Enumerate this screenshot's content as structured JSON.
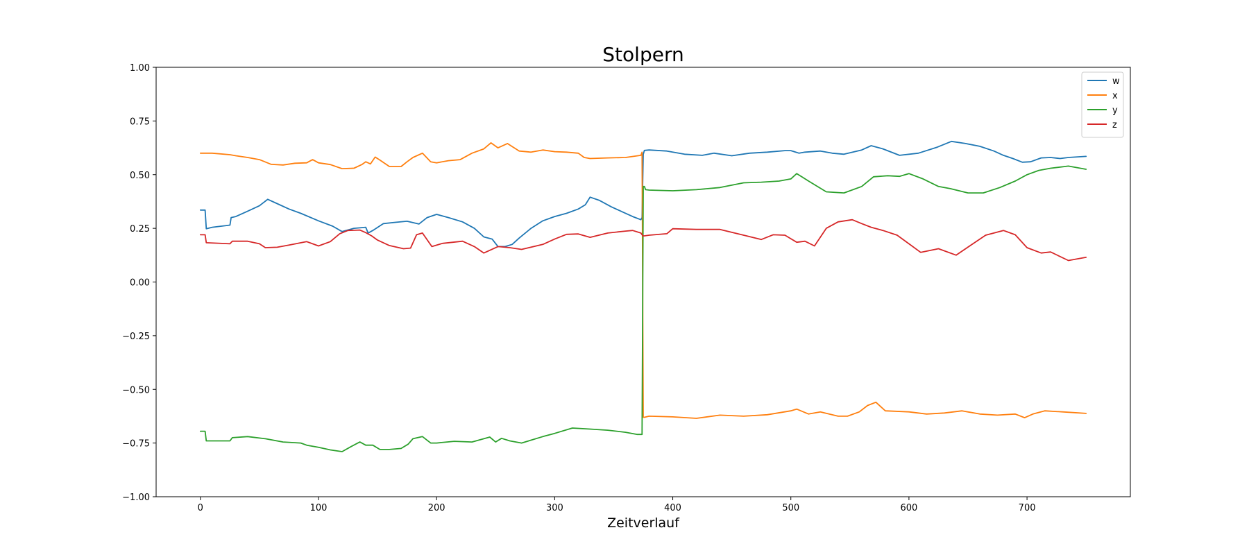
{
  "chart_data": {
    "type": "line",
    "title": "Stolpern",
    "xlabel": "Zeitverlauf",
    "ylabel": "",
    "xlim": [
      -37.5,
      787.5
    ],
    "ylim": [
      -1.0,
      1.0
    ],
    "x_ticks": [
      0,
      100,
      200,
      300,
      400,
      500,
      600,
      700
    ],
    "y_ticks": [
      -1.0,
      -0.75,
      -0.5,
      -0.25,
      0.0,
      0.25,
      0.5,
      0.75,
      1.0
    ],
    "y_tick_labels": [
      "−1.00",
      "−0.75",
      "−0.50",
      "−0.25",
      "0.00",
      "0.25",
      "0.50",
      "0.75",
      "1.00"
    ],
    "grid": false,
    "legend": "top-right",
    "series": [
      {
        "name": "w",
        "color": "#1f77b4",
        "x": [
          0,
          4,
          5,
          10,
          25,
          26,
          30,
          40,
          50,
          57,
          65,
          75,
          85,
          100,
          112,
          120,
          130,
          140,
          142,
          146,
          155,
          165,
          175,
          185,
          192,
          200,
          210,
          222,
          232,
          240,
          247,
          252,
          258,
          264,
          270,
          280,
          290,
          300,
          310,
          320,
          326,
          330,
          338,
          348,
          358,
          366,
          373,
          374,
          375,
          376,
          380,
          395,
          410,
          425,
          435,
          450,
          465,
          480,
          495,
          500,
          507,
          512,
          525,
          535,
          545,
          560,
          568,
          578,
          592,
          608,
          624,
          636,
          648,
          660,
          672,
          680,
          688,
          696,
          703,
          712,
          720,
          728,
          735,
          750
        ],
        "y": [
          0.335,
          0.335,
          0.248,
          0.255,
          0.265,
          0.3,
          0.305,
          0.33,
          0.355,
          0.385,
          0.365,
          0.34,
          0.32,
          0.285,
          0.26,
          0.235,
          0.25,
          0.255,
          0.228,
          0.24,
          0.272,
          0.278,
          0.283,
          0.27,
          0.3,
          0.315,
          0.3,
          0.28,
          0.25,
          0.21,
          0.2,
          0.165,
          0.165,
          0.175,
          0.205,
          0.25,
          0.285,
          0.305,
          0.32,
          0.34,
          0.36,
          0.395,
          0.38,
          0.35,
          0.325,
          0.305,
          0.29,
          0.3,
          0.595,
          0.613,
          0.615,
          0.61,
          0.595,
          0.59,
          0.6,
          0.588,
          0.6,
          0.605,
          0.612,
          0.612,
          0.6,
          0.605,
          0.61,
          0.6,
          0.595,
          0.615,
          0.635,
          0.62,
          0.59,
          0.6,
          0.628,
          0.655,
          0.645,
          0.632,
          0.61,
          0.59,
          0.575,
          0.558,
          0.56,
          0.578,
          0.58,
          0.575,
          0.58,
          0.585
        ]
      },
      {
        "name": "x",
        "color": "#ff7f0e",
        "x": [
          0,
          10,
          25,
          30,
          40,
          50,
          60,
          70,
          80,
          90,
          95,
          100,
          110,
          120,
          130,
          137,
          140,
          144,
          148,
          152,
          160,
          170,
          175,
          180,
          188,
          195,
          200,
          210,
          220,
          230,
          240,
          246,
          252,
          260,
          270,
          280,
          290,
          300,
          310,
          320,
          325,
          330,
          345,
          360,
          373,
          374,
          375,
          376,
          380,
          400,
          420,
          440,
          460,
          480,
          500,
          505,
          515,
          525,
          540,
          548,
          558,
          565,
          572,
          580,
          600,
          615,
          630,
          645,
          660,
          675,
          690,
          698,
          705,
          715,
          730,
          750
        ],
        "y": [
          0.6,
          0.6,
          0.593,
          0.588,
          0.58,
          0.57,
          0.548,
          0.545,
          0.553,
          0.555,
          0.57,
          0.555,
          0.547,
          0.528,
          0.53,
          0.548,
          0.56,
          0.55,
          0.582,
          0.568,
          0.538,
          0.538,
          0.56,
          0.58,
          0.6,
          0.56,
          0.555,
          0.565,
          0.57,
          0.6,
          0.62,
          0.648,
          0.625,
          0.645,
          0.61,
          0.605,
          0.615,
          0.607,
          0.605,
          0.6,
          0.58,
          0.575,
          0.578,
          0.58,
          0.59,
          0.605,
          -0.63,
          -0.63,
          -0.625,
          -0.628,
          -0.635,
          -0.62,
          -0.625,
          -0.618,
          -0.6,
          -0.592,
          -0.615,
          -0.605,
          -0.625,
          -0.625,
          -0.605,
          -0.575,
          -0.56,
          -0.6,
          -0.605,
          -0.615,
          -0.61,
          -0.6,
          -0.615,
          -0.62,
          -0.615,
          -0.632,
          -0.615,
          -0.6,
          -0.605,
          -0.612
        ]
      },
      {
        "name": "y",
        "color": "#2ca02c",
        "x": [
          0,
          4,
          5,
          25,
          27,
          40,
          55,
          70,
          85,
          90,
          100,
          110,
          120,
          128,
          135,
          140,
          146,
          152,
          160,
          170,
          176,
          180,
          188,
          195,
          200,
          215,
          230,
          240,
          245,
          250,
          255,
          262,
          272,
          290,
          300,
          315,
          330,
          345,
          360,
          370,
          374,
          375,
          376,
          377,
          380,
          400,
          420,
          440,
          460,
          475,
          490,
          500,
          505,
          515,
          530,
          545,
          560,
          570,
          582,
          592,
          600,
          612,
          625,
          635,
          650,
          663,
          677,
          690,
          700,
          710,
          720,
          735,
          750
        ],
        "y": [
          -0.695,
          -0.695,
          -0.74,
          -0.74,
          -0.725,
          -0.72,
          -0.73,
          -0.745,
          -0.75,
          -0.76,
          -0.77,
          -0.782,
          -0.79,
          -0.765,
          -0.745,
          -0.76,
          -0.76,
          -0.78,
          -0.78,
          -0.775,
          -0.755,
          -0.73,
          -0.72,
          -0.75,
          -0.75,
          -0.742,
          -0.745,
          -0.73,
          -0.722,
          -0.745,
          -0.728,
          -0.74,
          -0.75,
          -0.72,
          -0.705,
          -0.68,
          -0.685,
          -0.69,
          -0.7,
          -0.71,
          -0.71,
          0.445,
          0.445,
          0.43,
          0.428,
          0.425,
          0.43,
          0.44,
          0.462,
          0.465,
          0.47,
          0.48,
          0.505,
          0.47,
          0.42,
          0.415,
          0.445,
          0.49,
          0.495,
          0.492,
          0.505,
          0.48,
          0.445,
          0.435,
          0.415,
          0.415,
          0.44,
          0.47,
          0.5,
          0.52,
          0.53,
          0.54,
          0.525
        ]
      },
      {
        "name": "z",
        "color": "#d62728",
        "x": [
          0,
          4,
          5,
          25,
          27,
          40,
          50,
          55,
          65,
          75,
          90,
          95,
          100,
          110,
          118,
          125,
          135,
          140,
          145,
          150,
          160,
          172,
          178,
          183,
          188,
          196,
          205,
          222,
          232,
          240,
          252,
          262,
          272,
          290,
          300,
          310,
          320,
          330,
          345,
          360,
          366,
          373,
          374,
          375,
          376,
          380,
          395,
          400,
          420,
          440,
          460,
          475,
          485,
          495,
          505,
          512,
          520,
          530,
          540,
          552,
          560,
          568,
          578,
          590,
          600,
          610,
          625,
          640,
          652,
          665,
          680,
          690,
          700,
          712,
          720,
          735,
          750
        ],
        "y": [
          0.22,
          0.22,
          0.183,
          0.178,
          0.19,
          0.19,
          0.178,
          0.16,
          0.162,
          0.172,
          0.188,
          0.178,
          0.168,
          0.188,
          0.225,
          0.24,
          0.242,
          0.23,
          0.215,
          0.195,
          0.17,
          0.155,
          0.158,
          0.22,
          0.228,
          0.165,
          0.18,
          0.19,
          0.165,
          0.135,
          0.165,
          0.16,
          0.152,
          0.175,
          0.2,
          0.222,
          0.224,
          0.208,
          0.228,
          0.237,
          0.24,
          0.228,
          0.22,
          0.215,
          0.215,
          0.218,
          0.225,
          0.248,
          0.245,
          0.245,
          0.218,
          0.198,
          0.22,
          0.218,
          0.185,
          0.19,
          0.168,
          0.25,
          0.28,
          0.29,
          0.272,
          0.255,
          0.24,
          0.218,
          0.178,
          0.138,
          0.155,
          0.125,
          0.17,
          0.218,
          0.24,
          0.22,
          0.16,
          0.135,
          0.14,
          0.1,
          0.115
        ]
      }
    ]
  }
}
